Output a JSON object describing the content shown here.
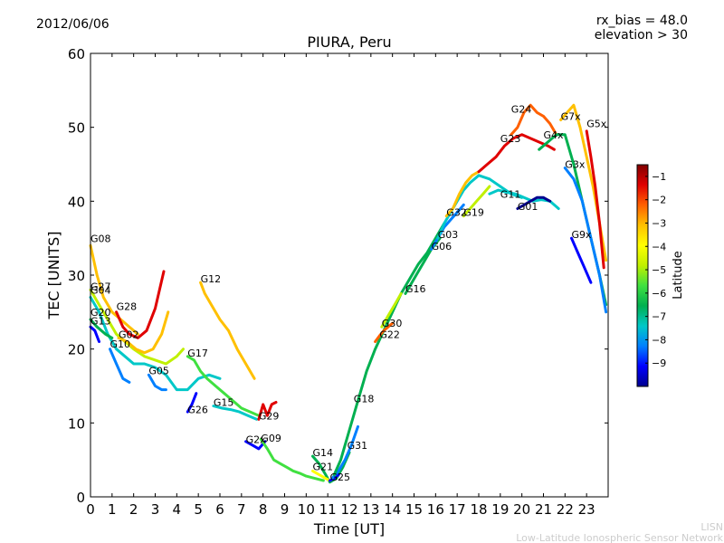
{
  "header": {
    "date": "2012/06/06",
    "bias": "rx_bias = 48.0",
    "elevation": "elevation > 30"
  },
  "footer": {
    "line1": "LISN",
    "line2": "Low-Latitude Ionospheric Sensor Network"
  },
  "chart_data": {
    "type": "line",
    "title": "PIURA, Peru",
    "xlabel": "Time [UT]",
    "ylabel": "TEC [UNITS]",
    "xlim": [
      0,
      24
    ],
    "ylim": [
      0,
      60
    ],
    "xticks": [
      "0",
      "1",
      "2",
      "3",
      "4",
      "5",
      "6",
      "7",
      "8",
      "9",
      "10",
      "11",
      "12",
      "13",
      "14",
      "15",
      "16",
      "17",
      "18",
      "19",
      "20",
      "21",
      "22",
      "23"
    ],
    "yticks": [
      "0",
      "10",
      "20",
      "30",
      "40",
      "50",
      "60"
    ],
    "colorbar": {
      "label": "Latitude",
      "range": [
        -10,
        -0.5
      ],
      "ticks": [
        "-1",
        "-2",
        "-3",
        "-4",
        "-5",
        "-6",
        "-7",
        "-8",
        "-9"
      ],
      "palette": [
        "#00008f",
        "#0000ff",
        "#0080ff",
        "#00c8c8",
        "#00b050",
        "#40e040",
        "#c0f000",
        "#ffff00",
        "#ffc000",
        "#ff6000",
        "#e00000",
        "#800000"
      ]
    },
    "series": [
      {
        "name": "G08",
        "label_at": [
          0.0,
          34.5
        ],
        "x": [
          0.0,
          0.3,
          0.6,
          1.0,
          1.4,
          1.8,
          2.2
        ],
        "y": [
          34,
          30,
          27,
          25,
          24,
          23,
          22
        ],
        "lat": -3.5
      },
      {
        "name": "G27",
        "label_at": [
          0.0,
          28.0
        ],
        "x": [
          0.0,
          0.4,
          0.8,
          1.2,
          1.6,
          2.0,
          2.5,
          3.0,
          3.5,
          4.0,
          4.3
        ],
        "y": [
          28,
          26,
          24,
          22,
          21,
          20,
          19,
          18.5,
          18,
          19,
          20
        ],
        "lat": -5.2
      },
      {
        "name": "G04",
        "label_at": [
          0.0,
          27.5
        ],
        "x": [
          0.0,
          0.4,
          0.8,
          1.2,
          1.6,
          2.0,
          2.5,
          3.0,
          3.5,
          4.0,
          4.5,
          5.0,
          5.5,
          6.0
        ],
        "y": [
          27,
          25,
          22,
          20,
          19,
          18,
          18,
          17.5,
          16.5,
          14.5,
          14.5,
          16,
          16.5,
          16
        ],
        "lat": -7.5
      },
      {
        "name": "G20",
        "label_at": [
          0.0,
          24.5
        ],
        "x": [
          0.0,
          0.3,
          0.7,
          1.0
        ],
        "y": [
          24,
          23,
          22,
          21.5
        ],
        "lat": -6.5
      },
      {
        "name": "G13",
        "label_at": [
          0.0,
          23.3
        ],
        "x": [
          0.0,
          0.2,
          0.4
        ],
        "y": [
          23,
          22.5,
          21
        ],
        "lat": -9.5
      },
      {
        "name": "G28",
        "label_at": [
          1.2,
          25.3
        ],
        "x": [
          1.2,
          1.5,
          1.8,
          2.2,
          2.6,
          3.0,
          3.4
        ],
        "y": [
          25,
          23,
          22,
          21.5,
          22.5,
          25.5,
          30.5
        ],
        "lat": -1.5
      },
      {
        "name": "G02",
        "label_at": [
          1.3,
          21.5
        ],
        "x": [
          1.3,
          1.7,
          2.1,
          2.5,
          2.9,
          3.3,
          3.6
        ],
        "y": [
          21.5,
          21,
          20,
          19.5,
          20,
          22,
          25
        ],
        "lat": -3.2
      },
      {
        "name": "G10",
        "label_at": [
          0.9,
          20.2
        ],
        "x": [
          0.9,
          1.2,
          1.5,
          1.8
        ],
        "y": [
          20,
          18,
          16,
          15.5
        ],
        "lat": -8.6
      },
      {
        "name": "G05",
        "label_at": [
          2.7,
          16.6
        ],
        "x": [
          2.7,
          3.0,
          3.3,
          3.5
        ],
        "y": [
          16.5,
          15,
          14.5,
          14.5
        ],
        "lat": -8.0
      },
      {
        "name": "G12",
        "label_at": [
          5.1,
          29.0
        ],
        "x": [
          5.1,
          5.3,
          5.6,
          6.0,
          6.4,
          6.8,
          7.2,
          7.6
        ],
        "y": [
          29,
          27.5,
          26,
          24,
          22.5,
          20,
          18,
          16
        ],
        "lat": -3.0
      },
      {
        "name": "G17",
        "label_at": [
          4.5,
          19.0
        ],
        "x": [
          4.5,
          4.8,
          5.1,
          5.4,
          5.8,
          6.2,
          6.6,
          7.0,
          7.4,
          7.8
        ],
        "y": [
          19,
          18.5,
          17,
          16,
          15,
          14,
          13,
          12,
          11.5,
          11
        ],
        "lat": -5.5
      },
      {
        "name": "G26",
        "label_at": [
          4.5,
          11.3
        ],
        "x": [
          4.5,
          4.7,
          4.9
        ],
        "y": [
          11.5,
          12.5,
          14
        ],
        "lat": -9.2
      },
      {
        "name": "G15",
        "label_at": [
          5.7,
          12.3
        ],
        "x": [
          5.7,
          6.1,
          6.5,
          6.9,
          7.3,
          7.7
        ],
        "y": [
          12.3,
          12,
          11.8,
          11.5,
          11,
          10.5
        ],
        "lat": -7.2
      },
      {
        "name": "G29",
        "label_at": [
          7.8,
          10.5
        ],
        "x": [
          7.8,
          8.0,
          8.2,
          8.4,
          8.6
        ],
        "y": [
          10.5,
          12.5,
          11,
          12.5,
          12.8
        ],
        "lat": -1.6
      },
      {
        "name": "G2x",
        "label_at": [
          7.2,
          7.3
        ],
        "x": [
          7.2,
          7.5,
          7.8,
          8.1
        ],
        "y": [
          7.5,
          7,
          6.5,
          7.5
        ],
        "lat": -9.0
      },
      {
        "name": "G09",
        "label_at": [
          7.9,
          7.5
        ],
        "x": [
          7.9,
          8.2,
          8.5,
          8.8,
          9.1,
          9.4,
          9.7,
          10.0,
          10.4,
          10.8
        ],
        "y": [
          7.8,
          6.5,
          5,
          4.5,
          4,
          3.5,
          3.2,
          2.8,
          2.5,
          2.2
        ],
        "lat": -5.8
      },
      {
        "name": "G14",
        "label_at": [
          10.3,
          5.5
        ],
        "x": [
          10.3,
          10.6,
          10.9,
          11.1,
          11.4,
          11.7,
          12.0
        ],
        "y": [
          5.5,
          4.5,
          3,
          2,
          2.5,
          4,
          6
        ],
        "lat": -6.2
      },
      {
        "name": "G21",
        "label_at": [
          10.3,
          3.6
        ],
        "x": [
          10.3,
          10.6,
          10.9,
          11.1,
          11.3
        ],
        "y": [
          3.5,
          3,
          2.5,
          2.2,
          2.5
        ],
        "lat": -4.0
      },
      {
        "name": "G25",
        "label_at": [
          11.1,
          2.2
        ],
        "x": [
          11.1,
          11.3,
          11.5
        ],
        "y": [
          2.2,
          2.5,
          3.0
        ],
        "lat": -9.0
      },
      {
        "name": "G31",
        "label_at": [
          11.9,
          6.5
        ],
        "x": [
          11.2,
          11.5,
          11.8,
          12.1,
          12.4
        ],
        "y": [
          2.5,
          3.5,
          5,
          7,
          9.5
        ],
        "lat": -8.2
      },
      {
        "name": "G18",
        "label_at": [
          12.2,
          12.8
        ],
        "x": [
          11.3,
          11.6,
          12.0,
          12.4,
          12.8,
          13.2,
          13.6,
          14.0,
          14.4,
          14.8,
          15.2,
          15.6,
          16.0,
          16.4
        ],
        "y": [
          3,
          5,
          9,
          13,
          17,
          20,
          22.5,
          25,
          27.5,
          29.5,
          31.5,
          33,
          35,
          37
        ],
        "lat": -6.6
      },
      {
        "name": "G22",
        "label_at": [
          13.4,
          21.5
        ],
        "x": [
          13.2,
          13.4,
          13.6,
          13.8,
          14.0
        ],
        "y": [
          21,
          21.8,
          22.5,
          23,
          23.5
        ],
        "lat": -2.4
      },
      {
        "name": "G30",
        "label_at": [
          13.5,
          23.0
        ],
        "x": [
          13.5,
          13.8,
          14.1,
          14.4
        ],
        "y": [
          23,
          24.5,
          26,
          27.5
        ],
        "lat": -4.6
      },
      {
        "name": "G16",
        "label_at": [
          14.6,
          27.7
        ],
        "x": [
          14.6,
          14.9,
          15.2,
          15.5,
          15.8,
          16.2
        ],
        "y": [
          27.5,
          29,
          30.5,
          32,
          33.5,
          35
        ],
        "lat": -6.8
      },
      {
        "name": "G06",
        "label_at": [
          15.8,
          33.4
        ],
        "x": [
          15.8,
          16.1,
          16.4,
          16.7,
          17.0,
          17.3
        ],
        "y": [
          33.5,
          35,
          36.5,
          37.5,
          38.5,
          39.5
        ],
        "lat": -8.1
      },
      {
        "name": "G03",
        "label_at": [
          16.1,
          35.0
        ],
        "x": [
          16.1,
          16.4,
          16.7,
          17.0,
          17.3,
          17.6,
          18.0,
          18.5,
          19.0,
          19.5,
          20.0
        ],
        "y": [
          35,
          37,
          38.5,
          40,
          41.5,
          42.5,
          43.5,
          43,
          42,
          41,
          40.5
        ],
        "lat": -7.8
      },
      {
        "name": "G32",
        "label_at": [
          16.5,
          38.0
        ],
        "x": [
          16.5,
          16.8,
          17.1,
          17.4,
          17.7,
          18.0
        ],
        "y": [
          38,
          39,
          41,
          42.5,
          43.5,
          44
        ],
        "lat": -3.4
      },
      {
        "name": "G19",
        "label_at": [
          17.3,
          38.0
        ],
        "x": [
          17.3,
          17.6,
          17.9,
          18.2,
          18.5
        ],
        "y": [
          38,
          39,
          40,
          41,
          42
        ],
        "lat": -5.0
      },
      {
        "name": "G23",
        "label_at": [
          19.0,
          48.0
        ],
        "x": [
          18.0,
          18.4,
          18.8,
          19.2,
          19.6,
          20.0,
          20.4,
          20.8,
          21.2,
          21.5
        ],
        "y": [
          44,
          45,
          46,
          47.5,
          48.5,
          49,
          48.5,
          48,
          47.5,
          47
        ],
        "lat": -1.3
      },
      {
        "name": "G11",
        "label_at": [
          19.0,
          40.5
        ],
        "x": [
          18.5,
          18.9,
          19.3,
          19.7,
          20.1,
          20.5,
          20.9,
          21.3,
          21.7
        ],
        "y": [
          41,
          41.5,
          41.2,
          41,
          40.5,
          40,
          40.2,
          40,
          39
        ],
        "lat": -7.4
      },
      {
        "name": "G01",
        "label_at": [
          19.8,
          38.8
        ],
        "x": [
          19.8,
          20.1,
          20.4,
          20.7,
          21.0,
          21.3
        ],
        "y": [
          39,
          39.5,
          40,
          40.5,
          40.5,
          40
        ],
        "lat": -9.6
      },
      {
        "name": "G24",
        "label_at": [
          19.5,
          52.0
        ],
        "x": [
          19.5,
          19.8,
          20.1,
          20.4,
          20.7,
          21.0,
          21.3,
          21.6
        ],
        "y": [
          49,
          50,
          52,
          53,
          52,
          51.5,
          50.5,
          49
        ],
        "lat": -2.0
      },
      {
        "name": "G7x",
        "label_at": [
          21.8,
          51.0
        ],
        "x": [
          21.8,
          22.1,
          22.4,
          22.7,
          23.0,
          23.3,
          23.6,
          23.9
        ],
        "y": [
          51,
          52,
          53,
          50,
          46,
          42,
          37,
          32
        ],
        "lat": -3.0
      },
      {
        "name": "G4x",
        "label_at": [
          21.0,
          48.5
        ],
        "x": [
          20.8,
          21.2,
          21.6,
          22.0,
          22.4,
          22.8,
          23.2,
          23.6,
          23.9
        ],
        "y": [
          47,
          48,
          49,
          49,
          45,
          40,
          35,
          30,
          26
        ],
        "lat": -6.9
      },
      {
        "name": "G3x",
        "label_at": [
          22.0,
          44.5
        ],
        "x": [
          22.0,
          22.4,
          22.8,
          23.2,
          23.6,
          23.9
        ],
        "y": [
          44.5,
          43,
          40,
          35,
          30,
          25
        ],
        "lat": -8.0
      },
      {
        "name": "G9x",
        "label_at": [
          22.3,
          35.0
        ],
        "x": [
          22.3,
          22.6,
          22.9,
          23.2
        ],
        "y": [
          35,
          33,
          31,
          29
        ],
        "lat": -9.3
      },
      {
        "name": "G5x",
        "label_at": [
          23.0,
          50.0
        ],
        "x": [
          23.0,
          23.2,
          23.4,
          23.6,
          23.8
        ],
        "y": [
          49.5,
          46,
          42,
          37,
          31
        ],
        "lat": -1.0
      }
    ]
  }
}
